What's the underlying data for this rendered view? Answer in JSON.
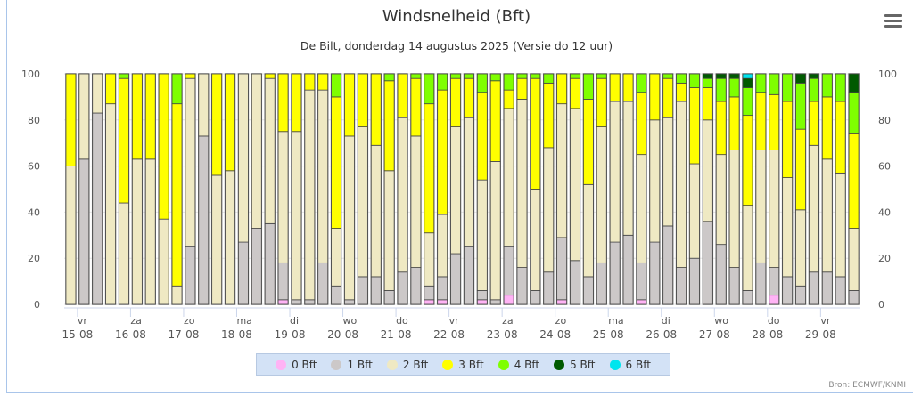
{
  "chart_data": {
    "type": "bar",
    "stacked": "percent",
    "title": "Windsnelheid (Bft)",
    "subtitle": "De Bilt, donderdag 14 augustus 2025 (Versie do 12 uur)",
    "ylim": [
      0,
      100
    ],
    "yticks": [
      "0",
      "20",
      "40",
      "60",
      "80",
      "100"
    ],
    "grid": true,
    "legend_placement": "bottom",
    "xticks": [
      {
        "day": "vr",
        "date": "15-08"
      },
      {
        "day": "za",
        "date": "16-08"
      },
      {
        "day": "zo",
        "date": "17-08"
      },
      {
        "day": "ma",
        "date": "18-08"
      },
      {
        "day": "di",
        "date": "19-08"
      },
      {
        "day": "wo",
        "date": "20-08"
      },
      {
        "day": "do",
        "date": "21-08"
      },
      {
        "day": "vr",
        "date": "22-08"
      },
      {
        "day": "za",
        "date": "23-08"
      },
      {
        "day": "zo",
        "date": "24-08"
      },
      {
        "day": "ma",
        "date": "25-08"
      },
      {
        "day": "di",
        "date": "26-08"
      },
      {
        "day": "wo",
        "date": "27-08"
      },
      {
        "day": "do",
        "date": "28-08"
      },
      {
        "day": "vr",
        "date": "29-08"
      }
    ],
    "series": [
      {
        "name": "0 Bft",
        "color": "#ffb3f5"
      },
      {
        "name": "1 Bft",
        "color": "#ccc8c8"
      },
      {
        "name": "2 Bft",
        "color": "#efe9c3"
      },
      {
        "name": "3 Bft",
        "color": "#ffff00"
      },
      {
        "name": "4 Bft",
        "color": "#7fff00"
      },
      {
        "name": "5 Bft",
        "color": "#005a00"
      },
      {
        "name": "6 Bft",
        "color": "#00e5ee"
      }
    ],
    "bars": [
      [
        0,
        0,
        60,
        40,
        0,
        0,
        0
      ],
      [
        0,
        63,
        37,
        0,
        0,
        0,
        0
      ],
      [
        0,
        83,
        17,
        0,
        0,
        0,
        0
      ],
      [
        0,
        0,
        87,
        13,
        0,
        0,
        0
      ],
      [
        0,
        0,
        44,
        54,
        2,
        0,
        0
      ],
      [
        0,
        0,
        63,
        37,
        0,
        0,
        0
      ],
      [
        0,
        0,
        63,
        37,
        0,
        0,
        0
      ],
      [
        0,
        0,
        37,
        63,
        0,
        0,
        0
      ],
      [
        0,
        0,
        8,
        79,
        13,
        0,
        0
      ],
      [
        0,
        25,
        73,
        2,
        0,
        0,
        0
      ],
      [
        0,
        73,
        27,
        0,
        0,
        0,
        0
      ],
      [
        0,
        0,
        56,
        44,
        0,
        0,
        0
      ],
      [
        0,
        0,
        58,
        42,
        0,
        0,
        0
      ],
      [
        0,
        27,
        73,
        0,
        0,
        0,
        0
      ],
      [
        0,
        33,
        67,
        0,
        0,
        0,
        0
      ],
      [
        0,
        35,
        63,
        2,
        0,
        0,
        0
      ],
      [
        2,
        16,
        57,
        25,
        0,
        0,
        0
      ],
      [
        0,
        2,
        73,
        25,
        0,
        0,
        0
      ],
      [
        0,
        2,
        91,
        7,
        0,
        0,
        0
      ],
      [
        0,
        18,
        75,
        7,
        0,
        0,
        0
      ],
      [
        0,
        8,
        25,
        57,
        10,
        0,
        0
      ],
      [
        0,
        2,
        71,
        27,
        0,
        0,
        0
      ],
      [
        0,
        12,
        65,
        23,
        0,
        0,
        0
      ],
      [
        0,
        12,
        57,
        31,
        0,
        0,
        0
      ],
      [
        0,
        6,
        52,
        39,
        3,
        0,
        0
      ],
      [
        0,
        14,
        67,
        19,
        0,
        0,
        0
      ],
      [
        0,
        16,
        57,
        25,
        2,
        0,
        0
      ],
      [
        2,
        6,
        23,
        56,
        13,
        0,
        0
      ],
      [
        2,
        10,
        27,
        54,
        7,
        0,
        0
      ],
      [
        0,
        22,
        55,
        21,
        2,
        0,
        0
      ],
      [
        0,
        25,
        56,
        17,
        2,
        0,
        0
      ],
      [
        2,
        4,
        48,
        38,
        8,
        0,
        0
      ],
      [
        0,
        2,
        60,
        35,
        3,
        0,
        0
      ],
      [
        4,
        21,
        60,
        8,
        7,
        0,
        0
      ],
      [
        0,
        16,
        73,
        9,
        2,
        0,
        0
      ],
      [
        0,
        6,
        44,
        48,
        2,
        0,
        0
      ],
      [
        0,
        14,
        54,
        28,
        4,
        0,
        0
      ],
      [
        2,
        27,
        58,
        13,
        0,
        0,
        0
      ],
      [
        0,
        19,
        66,
        13,
        2,
        0,
        0
      ],
      [
        0,
        12,
        40,
        37,
        11,
        0,
        0
      ],
      [
        0,
        18,
        59,
        21,
        2,
        0,
        0
      ],
      [
        0,
        27,
        61,
        12,
        0,
        0,
        0
      ],
      [
        0,
        30,
        58,
        12,
        0,
        0,
        0
      ],
      [
        2,
        16,
        47,
        27,
        8,
        0,
        0
      ],
      [
        0,
        27,
        53,
        20,
        0,
        0,
        0
      ],
      [
        0,
        34,
        47,
        17,
        2,
        0,
        0
      ],
      [
        0,
        16,
        72,
        8,
        4,
        0,
        0
      ],
      [
        0,
        20,
        41,
        33,
        6,
        0,
        0
      ],
      [
        0,
        36,
        44,
        14,
        4,
        2,
        0
      ],
      [
        0,
        26,
        39,
        23,
        10,
        2,
        0
      ],
      [
        0,
        16,
        51,
        23,
        8,
        2,
        0
      ],
      [
        0,
        6,
        37,
        39,
        12,
        4,
        2
      ],
      [
        0,
        18,
        49,
        25,
        8,
        0,
        0
      ],
      [
        4,
        12,
        51,
        24,
        9,
        0,
        0
      ],
      [
        0,
        12,
        43,
        33,
        12,
        0,
        0
      ],
      [
        0,
        8,
        33,
        35,
        20,
        4,
        0
      ],
      [
        0,
        14,
        55,
        19,
        10,
        2,
        0
      ],
      [
        0,
        14,
        49,
        27,
        10,
        0,
        0
      ],
      [
        0,
        12,
        45,
        31,
        12,
        0,
        0
      ],
      [
        0,
        6,
        27,
        41,
        18,
        8,
        0
      ]
    ]
  },
  "menu_icon": "hamburger-menu-icon",
  "source": "Bron: ECMWF/KNMI"
}
